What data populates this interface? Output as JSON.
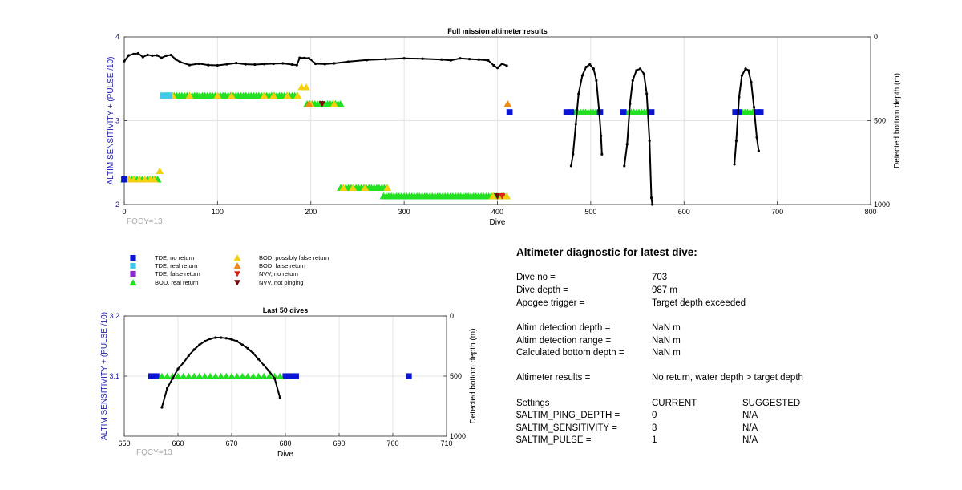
{
  "colors": {
    "tde_no_return": "#0a14d4",
    "tde_real_return": "#3ecbea",
    "tde_false_return": "#8a2ad0",
    "bod_real_return": "#22e022",
    "bod_possibly_false": "#f5cf10",
    "bod_false_return": "#ef8a1a",
    "nvv_no_return": "#e02010",
    "nvv_not_pinging": "#7a0a0a",
    "left_axis": "#1c1ca8",
    "depth_line": "#000000"
  },
  "chart_data": [
    {
      "type": "line",
      "title": "Full mission altimeter results",
      "xlabel": "Dive",
      "ylabel": "ALTIM SENSITIVITY + (PULSE /10)",
      "y2label": "Detected bottom depth (m)",
      "xlim": [
        0,
        800
      ],
      "ylim": [
        2,
        4
      ],
      "y2lim": [
        0,
        1000
      ],
      "y2_reversed": true,
      "x_ticks": [
        0,
        100,
        200,
        300,
        400,
        500,
        600,
        700,
        800
      ],
      "y_ticks": [
        2,
        3,
        4
      ],
      "y2_ticks": [
        0,
        500,
        1000
      ],
      "grid": true,
      "annotation": "FQCY=13",
      "series": [
        {
          "kind": "bod_real_return",
          "segments": [
            [
              0,
              37,
              2.3
            ],
            [
              48,
              188,
              3.3
            ],
            [
              196,
              232,
              3.2
            ],
            [
              232,
              283,
              2.2
            ],
            [
              278,
              410,
              2.1
            ],
            [
              478,
              510,
              3.1
            ],
            [
              538,
              565,
              3.1
            ],
            [
              657,
              678,
              3.1
            ]
          ]
        },
        {
          "kind": "bod_possibly_false",
          "points": [
            [
              5,
              2.3
            ],
            [
              10,
              2.3
            ],
            [
              16,
              2.3
            ],
            [
              22,
              2.3
            ],
            [
              28,
              2.3
            ],
            [
              32,
              2.3
            ],
            [
              38,
              2.4
            ],
            [
              52,
              3.3
            ],
            [
              70,
              3.3
            ],
            [
              100,
              3.3
            ],
            [
              115,
              3.3
            ],
            [
              150,
              3.3
            ],
            [
              160,
              3.3
            ],
            [
              175,
              3.3
            ],
            [
              186,
              3.3
            ],
            [
              190,
              3.4
            ],
            [
              195,
              3.4
            ],
            [
              200,
              3.2
            ],
            [
              225,
              3.2
            ],
            [
              235,
              2.2
            ],
            [
              245,
              2.2
            ],
            [
              258,
              2.2
            ],
            [
              282,
              2.2
            ],
            [
              395,
              2.1
            ],
            [
              405,
              2.1
            ],
            [
              410,
              2.1
            ],
            [
              411,
              3.2
            ]
          ]
        },
        {
          "kind": "bod_false_return",
          "points": [
            [
              198,
              3.2
            ],
            [
              411,
              3.2
            ]
          ]
        },
        {
          "kind": "tde_no_return",
          "points": [
            [
              0,
              2.3
            ],
            [
              413,
              3.1
            ],
            [
              474,
              3.1
            ],
            [
              479,
              3.1
            ],
            [
              510,
              3.1
            ],
            [
              535,
              3.1
            ],
            [
              565,
              3.1
            ],
            [
              655,
              3.1
            ],
            [
              659,
              3.1
            ],
            [
              679,
              3.1
            ],
            [
              682,
              3.1
            ]
          ]
        },
        {
          "kind": "tde_real_return",
          "points": [
            [
              42,
              3.3
            ],
            [
              45,
              3.3
            ],
            [
              48,
              3.3
            ]
          ]
        },
        {
          "kind": "nvv_not_pinging",
          "points": [
            [
              212,
              3.2
            ],
            [
              400,
              2.1
            ]
          ]
        },
        {
          "kind": "nvv_no_return",
          "points": [
            [
              405,
              2.1
            ]
          ]
        },
        {
          "kind": "bottom_depth_m",
          "segments": [
            [
              [
                0,
                145
              ],
              [
                5,
                110
              ],
              [
                10,
                102
              ],
              [
                15,
                98
              ],
              [
                20,
                120
              ],
              [
                25,
                107
              ],
              [
                30,
                112
              ],
              [
                35,
                110
              ],
              [
                40,
                125
              ],
              [
                45,
                112
              ],
              [
                50,
                108
              ],
              [
                55,
                133
              ],
              [
                60,
                150
              ],
              [
                70,
                168
              ],
              [
                80,
                160
              ],
              [
                90,
                168
              ],
              [
                100,
                170
              ],
              [
                110,
                163
              ],
              [
                120,
                156
              ],
              [
                130,
                163
              ],
              [
                140,
                165
              ],
              [
                150,
                162
              ],
              [
                160,
                160
              ],
              [
                170,
                158
              ],
              [
                180,
                165
              ],
              [
                185,
                168
              ],
              [
                188,
                125
              ],
              [
                193,
                126
              ],
              [
                198,
                127
              ],
              [
                205,
                160
              ],
              [
                215,
                162
              ],
              [
                225,
                158
              ],
              [
                240,
                148
              ],
              [
                260,
                138
              ],
              [
                280,
                133
              ],
              [
                300,
                128
              ],
              [
                320,
                130
              ],
              [
                340,
                135
              ],
              [
                350,
                140
              ],
              [
                360,
                128
              ],
              [
                370,
                132
              ],
              [
                380,
                135
              ],
              [
                390,
                140
              ],
              [
                396,
                170
              ],
              [
                400,
                185
              ],
              [
                405,
                160
              ],
              [
                410,
                172
              ]
            ],
            [
              [
                479,
                770
              ],
              [
                481,
                700
              ],
              [
                484,
                520
              ],
              [
                487,
                340
              ],
              [
                491,
                230
              ],
              [
                495,
                180
              ],
              [
                499,
                165
              ],
              [
                503,
                190
              ],
              [
                506,
                260
              ],
              [
                509,
                440
              ],
              [
                511,
                590
              ],
              [
                512,
                700
              ]
            ],
            [
              [
                536,
                770
              ],
              [
                539,
                640
              ],
              [
                542,
                400
              ],
              [
                545,
                260
              ],
              [
                549,
                200
              ],
              [
                553,
                190
              ],
              [
                557,
                220
              ],
              [
                560,
                340
              ],
              [
                563,
                620
              ],
              [
                565,
                960
              ],
              [
                566,
                1000
              ]
            ],
            [
              [
                654,
                760
              ],
              [
                656,
                620
              ],
              [
                659,
                360
              ],
              [
                662,
                230
              ],
              [
                666,
                190
              ],
              [
                669,
                200
              ],
              [
                672,
                270
              ],
              [
                675,
                420
              ],
              [
                678,
                600
              ],
              [
                680,
                680
              ]
            ]
          ]
        }
      ]
    },
    {
      "type": "line",
      "title": "Last 50 dives",
      "xlabel": "Dive",
      "ylabel": "ALTIM SENSITIVITY + (PULSE /10)",
      "y2label": "Detected bottom depth (m)",
      "xlim": [
        650,
        710
      ],
      "ylim": [
        3.0,
        3.2
      ],
      "y2lim": [
        0,
        1000
      ],
      "y2_reversed": true,
      "x_ticks": [
        650,
        660,
        670,
        680,
        690,
        700,
        710
      ],
      "y_ticks": [
        3.1,
        3.2
      ],
      "y2_ticks": [
        0,
        500,
        1000
      ],
      "grid": true,
      "annotation": "FQCY=13",
      "series": [
        {
          "kind": "tde_no_return",
          "points": [
            [
              655,
              3.1
            ],
            [
              656,
              3.1
            ],
            [
              680,
              3.1
            ],
            [
              681,
              3.1
            ],
            [
              682,
              3.1
            ],
            [
              703,
              3.1
            ]
          ]
        },
        {
          "kind": "bod_real_return",
          "points": [
            [
              657,
              3.1
            ],
            [
              658,
              3.1
            ],
            [
              659,
              3.1
            ],
            [
              660,
              3.1
            ],
            [
              661,
              3.1
            ],
            [
              662,
              3.1
            ],
            [
              663,
              3.1
            ],
            [
              664,
              3.1
            ],
            [
              665,
              3.1
            ],
            [
              666,
              3.1
            ],
            [
              667,
              3.1
            ],
            [
              668,
              3.1
            ],
            [
              669,
              3.1
            ],
            [
              670,
              3.1
            ],
            [
              671,
              3.1
            ],
            [
              672,
              3.1
            ],
            [
              673,
              3.1
            ],
            [
              674,
              3.1
            ],
            [
              675,
              3.1
            ],
            [
              676,
              3.1
            ],
            [
              677,
              3.1
            ],
            [
              678,
              3.1
            ],
            [
              679,
              3.1
            ]
          ]
        },
        {
          "kind": "bottom_depth_m",
          "points": [
            [
              657,
              760
            ],
            [
              658,
              600
            ],
            [
              659,
              520
            ],
            [
              660,
              440
            ],
            [
              661,
              390
            ],
            [
              662,
              330
            ],
            [
              663,
              280
            ],
            [
              664,
              240
            ],
            [
              665,
              210
            ],
            [
              666,
              190
            ],
            [
              667,
              180
            ],
            [
              668,
              180
            ],
            [
              669,
              185
            ],
            [
              670,
              195
            ],
            [
              671,
              210
            ],
            [
              672,
              240
            ],
            [
              673,
              270
            ],
            [
              674,
              310
            ],
            [
              675,
              360
            ],
            [
              676,
              410
            ],
            [
              677,
              460
            ],
            [
              678,
              520
            ],
            [
              679,
              680
            ]
          ]
        }
      ]
    }
  ],
  "legend": {
    "entries": [
      {
        "kind": "tde_no_return",
        "label": "TDE, no return"
      },
      {
        "kind": "tde_real_return",
        "label": "TDE, real return"
      },
      {
        "kind": "tde_false_return",
        "label": "TDE, false return"
      },
      {
        "kind": "bod_real_return",
        "label": "BOD, real return"
      },
      {
        "kind": "bod_possibly_false",
        "label": "BOD, possibly false return"
      },
      {
        "kind": "bod_false_return",
        "label": "BOD, false return"
      },
      {
        "kind": "nvv_no_return",
        "label": "NVV, no return"
      },
      {
        "kind": "nvv_not_pinging",
        "label": "NVV, not pinging"
      }
    ]
  },
  "diagnostic": {
    "title": "Altimeter diagnostic for latest dive:",
    "rows": [
      {
        "label": "Dive no =",
        "value": "703"
      },
      {
        "label": "Dive depth =",
        "value": "987 m"
      },
      {
        "label": "Apogee trigger =",
        "value": "Target depth exceeded"
      },
      {
        "label": "Altim detection depth =",
        "value": "NaN m"
      },
      {
        "label": "Altim detection range =",
        "value": "NaN m"
      },
      {
        "label": "Calculated bottom depth =",
        "value": "NaN m"
      },
      {
        "label": "Altimeter results =",
        "value": "No return, water depth > target depth"
      }
    ],
    "settings_header": {
      "label": "Settings",
      "current": "CURRENT",
      "suggested": "SUGGESTED"
    },
    "settings": [
      {
        "label": "$ALTIM_PING_DEPTH =",
        "current": "0",
        "suggested": "N/A"
      },
      {
        "label": "$ALTIM_SENSITIVITY =",
        "current": "3",
        "suggested": "N/A"
      },
      {
        "label": "$ALTIM_PULSE =",
        "current": "1",
        "suggested": "N/A"
      }
    ]
  }
}
